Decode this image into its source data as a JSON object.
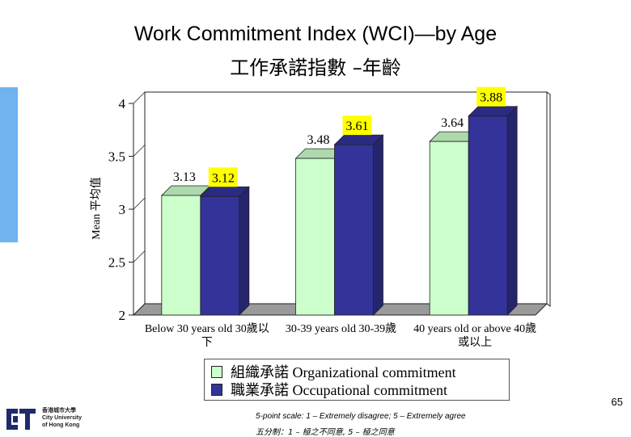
{
  "title_line1": "Work Commitment Index (WCI)—by Age",
  "title_line2": "工作承諾指數 –年齡",
  "legend": [
    {
      "label": "組織承諾  Organizational commitment",
      "color": "#ccffcc"
    },
    {
      "label": "職業承諾  Occupational commitment",
      "color": "#333399"
    }
  ],
  "page_number": "65",
  "scale_note_en": "5-point scale: 1 – Extremely disagree; 5 – Extremely agree",
  "scale_note_zh": "五分制：1 – 極之不同意, 5 – 極之同意",
  "logo_text": [
    "香港城市大學",
    "City University",
    "of Hong Kong"
  ],
  "chart_data": {
    "type": "bar",
    "ylabel": "Mean 平均值",
    "ylim": [
      2,
      4
    ],
    "yticks": [
      "2",
      "2.5",
      "3",
      "3.5",
      "4"
    ],
    "grid": false,
    "categories": [
      [
        "Below 30 years old 30歲以",
        "下"
      ],
      [
        "30-39 years old 30-39歲"
      ],
      [
        "40 years old or above 40歲",
        "或以上"
      ]
    ],
    "series": [
      {
        "name": "Organizational commitment",
        "values": [
          3.13,
          3.48,
          3.64
        ],
        "labels": [
          "3.13",
          "3.48",
          "3.64"
        ],
        "color": "#ccffcc",
        "highlight": false
      },
      {
        "name": "Occupational commitment",
        "values": [
          3.12,
          3.61,
          3.88
        ],
        "labels": [
          "3.12",
          "3.61",
          "3.88"
        ],
        "color": "#333399",
        "highlight": true
      }
    ]
  }
}
